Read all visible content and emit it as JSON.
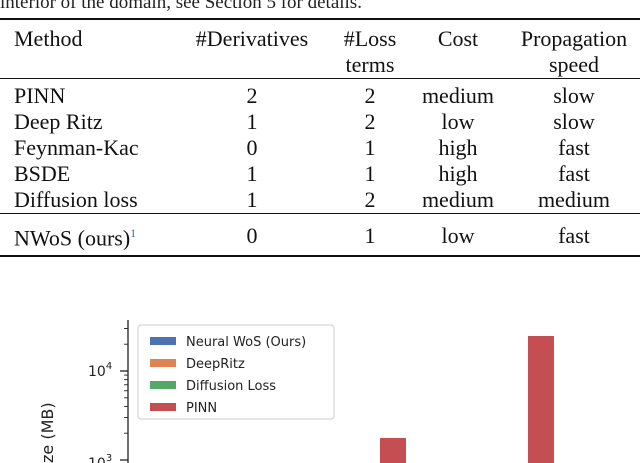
{
  "caption_tail": "interior of the domain, see Section 5 for details.",
  "table": {
    "headers": {
      "method": "Method",
      "derivatives": "#Derivatives",
      "loss_terms_line1": "#Loss",
      "loss_terms_line2": "terms",
      "cost": "Cost",
      "propagation_line1": "Propagation",
      "propagation_line2": "speed"
    },
    "rows": [
      {
        "method": "PINN",
        "derivatives": "2",
        "loss_terms": "2",
        "cost": "medium",
        "propagation": "slow"
      },
      {
        "method": "Deep Ritz",
        "derivatives": "1",
        "loss_terms": "2",
        "cost": "low",
        "propagation": "slow"
      },
      {
        "method": "Feynman-Kac",
        "derivatives": "0",
        "loss_terms": "1",
        "cost": "high",
        "propagation": "fast"
      },
      {
        "method": "BSDE",
        "derivatives": "1",
        "loss_terms": "1",
        "cost": "high",
        "propagation": "fast"
      },
      {
        "method": "Diffusion loss",
        "derivatives": "1",
        "loss_terms": "2",
        "cost": "medium",
        "propagation": "medium"
      }
    ],
    "ours": {
      "method": "NWoS (ours)",
      "footnote": "1",
      "derivatives": "0",
      "loss_terms": "1",
      "cost": "low",
      "propagation": "fast"
    }
  },
  "colors": {
    "neural_wos": "#4c72b0",
    "deepritz": "#dd8452",
    "diffusion_loss": "#55a868",
    "pinn": "#c44e52"
  },
  "chart_data": {
    "type": "bar",
    "yscale": "log",
    "ylabel": "ze (MB)",
    "yticks": [
      "10^4",
      "10^3"
    ],
    "legend": [
      "Neural WoS (Ours)",
      "DeepRitz",
      "Diffusion Loss",
      "PINN"
    ],
    "legend_position": "top-left",
    "visible_bars": [
      {
        "series": "PINN",
        "approx_value": 2000
      },
      {
        "series": "PINN",
        "approx_value": 20000
      }
    ]
  }
}
